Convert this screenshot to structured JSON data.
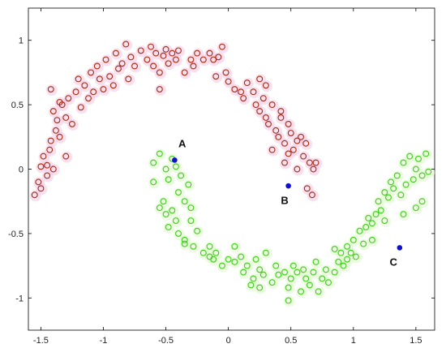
{
  "chart_data": {
    "type": "scatter",
    "xlim": [
      -1.6,
      1.65
    ],
    "ylim": [
      -1.25,
      1.25
    ],
    "x_ticks": [
      {
        "value": -1.5,
        "label": "-1.5"
      },
      {
        "value": -1,
        "label": "-1"
      },
      {
        "value": -0.5,
        "label": "-0.5"
      },
      {
        "value": 0,
        "label": "0"
      },
      {
        "value": 0.5,
        "label": "0.5"
      },
      {
        "value": 1,
        "label": "1"
      },
      {
        "value": 1.5,
        "label": "1.5"
      }
    ],
    "y_ticks": [
      {
        "value": 1,
        "label": "1"
      },
      {
        "value": 0.5,
        "label": "0.5"
      },
      {
        "value": 0,
        "label": "0"
      },
      {
        "value": -0.5,
        "label": "-0.5"
      },
      {
        "value": -1,
        "label": "-1"
      }
    ],
    "grid": false,
    "series": [
      {
        "color": "#a42a10",
        "halo": "#f2c6e2",
        "marker": "open-circle",
        "points": [
          [
            -1.55,
            -0.2
          ],
          [
            -1.52,
            -0.1
          ],
          [
            -1.5,
            0.02
          ],
          [
            -1.48,
            0.1
          ],
          [
            -1.45,
            0.03
          ],
          [
            -1.43,
            0.15
          ],
          [
            -1.4,
            0.0
          ],
          [
            -1.42,
            0.22
          ],
          [
            -1.38,
            0.3
          ],
          [
            -1.35,
            0.25
          ],
          [
            -1.4,
            0.45
          ],
          [
            -1.37,
            0.38
          ],
          [
            -1.33,
            0.5
          ],
          [
            -1.3,
            0.4
          ],
          [
            -1.42,
            0.62
          ],
          [
            -1.28,
            0.55
          ],
          [
            -1.25,
            0.35
          ],
          [
            -1.22,
            0.6
          ],
          [
            -1.2,
            0.7
          ],
          [
            -1.18,
            0.48
          ],
          [
            -1.15,
            0.65
          ],
          [
            -1.12,
            0.55
          ],
          [
            -1.1,
            0.75
          ],
          [
            -1.08,
            0.6
          ],
          [
            -1.05,
            0.8
          ],
          [
            -1.03,
            0.7
          ],
          [
            -1.0,
            0.62
          ],
          [
            -0.98,
            0.85
          ],
          [
            -0.95,
            0.72
          ],
          [
            -0.92,
            0.65
          ],
          [
            -0.9,
            0.9
          ],
          [
            -0.88,
            0.78
          ],
          [
            -0.85,
            0.82
          ],
          [
            -0.82,
            0.97
          ],
          [
            -0.8,
            0.7
          ],
          [
            -0.78,
            0.87
          ],
          [
            -0.75,
            0.8
          ],
          [
            -0.7,
            0.92
          ],
          [
            -0.65,
            0.85
          ],
          [
            -0.62,
            0.95
          ],
          [
            -0.6,
            0.8
          ],
          [
            -0.58,
            0.9
          ],
          [
            -0.55,
            0.75
          ],
          [
            -0.52,
            0.88
          ],
          [
            -0.5,
            0.93
          ],
          [
            -0.48,
            0.82
          ],
          [
            -0.45,
            0.9
          ],
          [
            -0.42,
            0.85
          ],
          [
            -0.4,
            0.92
          ],
          [
            -0.35,
            0.75
          ],
          [
            -0.3,
            0.85
          ],
          [
            -0.28,
            0.8
          ],
          [
            -0.25,
            0.9
          ],
          [
            -0.2,
            0.85
          ],
          [
            -0.15,
            0.9
          ],
          [
            -0.12,
            0.85
          ],
          [
            -0.1,
            0.72
          ],
          [
            -0.08,
            0.87
          ],
          [
            -0.05,
            0.95
          ],
          [
            -0.02,
            0.75
          ],
          [
            0.0,
            0.68
          ],
          [
            0.05,
            0.62
          ],
          [
            0.1,
            0.6
          ],
          [
            0.12,
            0.55
          ],
          [
            0.15,
            0.67
          ],
          [
            0.2,
            0.6
          ],
          [
            0.22,
            0.5
          ],
          [
            0.25,
            0.45
          ],
          [
            0.28,
            0.55
          ],
          [
            0.3,
            0.4
          ],
          [
            0.32,
            0.35
          ],
          [
            0.35,
            0.5
          ],
          [
            0.38,
            0.3
          ],
          [
            0.4,
            0.25
          ],
          [
            0.42,
            0.45
          ],
          [
            0.45,
            0.2
          ],
          [
            0.48,
            0.35
          ],
          [
            0.5,
            0.28
          ],
          [
            0.52,
            0.15
          ],
          [
            0.55,
            0.22
          ],
          [
            0.58,
            0.25
          ],
          [
            0.6,
            0.1
          ],
          [
            0.62,
            0.2
          ],
          [
            0.3,
            0.65
          ],
          [
            0.25,
            0.7
          ],
          [
            -0.55,
            0.62
          ],
          [
            0.42,
            0.4
          ],
          [
            0.35,
            0.15
          ],
          [
            0.45,
            0.05
          ],
          [
            0.48,
            0.12
          ],
          [
            0.55,
            0.0
          ],
          [
            0.65,
            0.05
          ],
          [
            0.68,
            0.0
          ],
          [
            0.7,
            0.05
          ],
          [
            0.63,
            -0.15
          ],
          [
            0.67,
            -0.2
          ],
          [
            -1.45,
            -0.05
          ],
          [
            -1.5,
            -0.15
          ],
          [
            -1.3,
            0.1
          ],
          [
            -1.35,
            0.52
          ]
        ]
      },
      {
        "color": "#3dcc1a",
        "halo": "#dcf7c8",
        "marker": "open-circle",
        "points": [
          [
            -0.6,
            0.05
          ],
          [
            -0.55,
            0.12
          ],
          [
            -0.5,
            0.0
          ],
          [
            -0.48,
            -0.08
          ],
          [
            -0.45,
            0.08
          ],
          [
            -0.42,
            0.02
          ],
          [
            -0.4,
            -0.18
          ],
          [
            -0.38,
            -0.05
          ],
          [
            -0.35,
            -0.25
          ],
          [
            -0.32,
            -0.12
          ],
          [
            -0.3,
            -0.3
          ],
          [
            -0.45,
            -0.32
          ],
          [
            -0.5,
            -0.35
          ],
          [
            -0.52,
            -0.25
          ],
          [
            -0.48,
            -0.45
          ],
          [
            -0.42,
            -0.4
          ],
          [
            -0.4,
            -0.5
          ],
          [
            -0.35,
            -0.55
          ],
          [
            -0.3,
            -0.4
          ],
          [
            -0.28,
            -0.6
          ],
          [
            -0.25,
            -0.48
          ],
          [
            -0.2,
            -0.65
          ],
          [
            -0.15,
            -0.6
          ],
          [
            -0.12,
            -0.7
          ],
          [
            -0.1,
            -0.65
          ],
          [
            -0.05,
            -0.75
          ],
          [
            0.0,
            -0.7
          ],
          [
            0.05,
            -0.72
          ],
          [
            0.1,
            -0.68
          ],
          [
            0.12,
            -0.8
          ],
          [
            0.15,
            -0.75
          ],
          [
            0.2,
            -0.85
          ],
          [
            0.22,
            -0.7
          ],
          [
            0.25,
            -0.78
          ],
          [
            0.28,
            -0.82
          ],
          [
            0.3,
            -0.65
          ],
          [
            0.35,
            -0.88
          ],
          [
            0.38,
            -0.75
          ],
          [
            0.4,
            -0.82
          ],
          [
            0.45,
            -0.8
          ],
          [
            0.48,
            -0.92
          ],
          [
            0.5,
            -0.85
          ],
          [
            0.52,
            -0.75
          ],
          [
            0.55,
            -0.8
          ],
          [
            0.58,
            -0.95
          ],
          [
            0.6,
            -0.78
          ],
          [
            0.62,
            -0.85
          ],
          [
            0.65,
            -0.9
          ],
          [
            0.68,
            -0.8
          ],
          [
            0.7,
            -0.72
          ],
          [
            0.72,
            -0.95
          ],
          [
            0.75,
            -0.85
          ],
          [
            0.78,
            -0.78
          ],
          [
            0.8,
            -0.88
          ],
          [
            0.85,
            -0.8
          ],
          [
            0.88,
            -0.72
          ],
          [
            0.9,
            -0.65
          ],
          [
            0.92,
            -0.75
          ],
          [
            0.95,
            -0.6
          ],
          [
            0.98,
            -0.65
          ],
          [
            1.0,
            -0.55
          ],
          [
            1.02,
            -0.68
          ],
          [
            1.05,
            -0.48
          ],
          [
            1.08,
            -0.58
          ],
          [
            1.1,
            -0.45
          ],
          [
            1.12,
            -0.38
          ],
          [
            1.15,
            -0.42
          ],
          [
            1.18,
            -0.35
          ],
          [
            1.2,
            -0.25
          ],
          [
            1.22,
            -0.32
          ],
          [
            1.25,
            -0.18
          ],
          [
            1.28,
            -0.22
          ],
          [
            1.3,
            -0.1
          ],
          [
            1.32,
            -0.15
          ],
          [
            1.35,
            -0.05
          ],
          [
            1.38,
            -0.2
          ],
          [
            1.4,
            0.05
          ],
          [
            1.42,
            -0.12
          ],
          [
            1.45,
            0.1
          ],
          [
            1.48,
            -0.08
          ],
          [
            1.5,
            0.0
          ],
          [
            1.52,
            0.08
          ],
          [
            1.55,
            -0.05
          ],
          [
            1.58,
            0.12
          ],
          [
            1.6,
            -0.02
          ],
          [
            1.55,
            -0.25
          ],
          [
            1.5,
            -0.3
          ],
          [
            1.4,
            -0.35
          ],
          [
            0.25,
            -0.92
          ],
          [
            0.48,
            -1.02
          ],
          [
            0.18,
            -0.9
          ],
          [
            -0.55,
            -0.3
          ],
          [
            -0.6,
            -0.1
          ],
          [
            -0.35,
            -0.58
          ],
          [
            -0.15,
            -0.68
          ],
          [
            0.05,
            -0.6
          ],
          [
            0.85,
            -0.62
          ],
          [
            0.95,
            -0.7
          ],
          [
            1.15,
            -0.55
          ],
          [
            1.25,
            -0.4
          ]
        ]
      }
    ],
    "highlight_points": [
      {
        "label": "A",
        "x": -0.43,
        "y": 0.07,
        "label_dx": 0.03,
        "label_dy": 0.1
      },
      {
        "label": "B",
        "x": 0.48,
        "y": -0.13,
        "label_dx": -0.06,
        "label_dy": -0.14
      },
      {
        "label": "C",
        "x": 1.37,
        "y": -0.61,
        "label_dx": -0.08,
        "label_dy": -0.14
      }
    ],
    "highlight_color": "#1010d0"
  }
}
